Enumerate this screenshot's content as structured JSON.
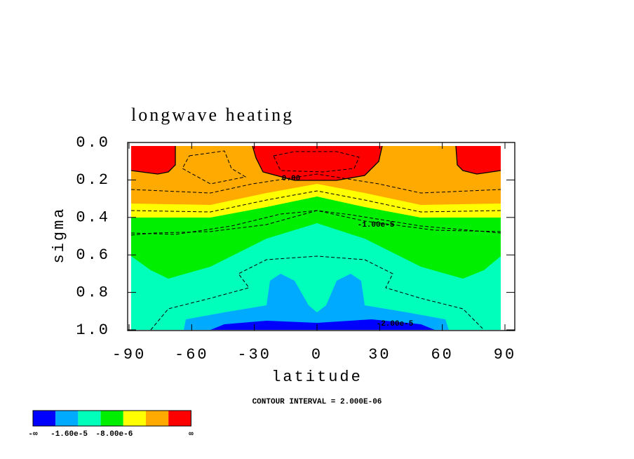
{
  "chart_data": {
    "type": "contour",
    "title": "longwave heating",
    "xlabel": "latitude",
    "ylabel": "sigma",
    "xlim": [
      -90,
      90
    ],
    "ylim": [
      1.0,
      0.0
    ],
    "xticks": [
      -90,
      -60,
      -30,
      0,
      30,
      60,
      90
    ],
    "yticks": [
      {
        "value": 0,
        "label": "0.0"
      },
      {
        "value": 0.2,
        "label": "0.2"
      },
      {
        "value": 0.4,
        "label": "0.4"
      },
      {
        "value": 0.6,
        "label": "0.6"
      },
      {
        "value": 0.8,
        "label": "0.8"
      },
      {
        "value": 1,
        "label": "1.0"
      }
    ],
    "contour_labels": [
      "0.00",
      "-1.00e-5",
      "-2.00e-5"
    ],
    "contour_interval": "CONTOUR INTERVAL = 2.000E-06",
    "colorbar": {
      "colors": [
        "#0000ff",
        "#00aaff",
        "#00ffbb",
        "#00ee00",
        "#ffff00",
        "#ffaa00",
        "#ff0000"
      ],
      "low_label": "-∞",
      "high_label": "∞",
      "ticks": [
        {
          "value": -1.6e-05,
          "label": "-1.60e-5"
        },
        {
          "value": -8e-06,
          "label": "-8.00e-6"
        }
      ]
    }
  }
}
